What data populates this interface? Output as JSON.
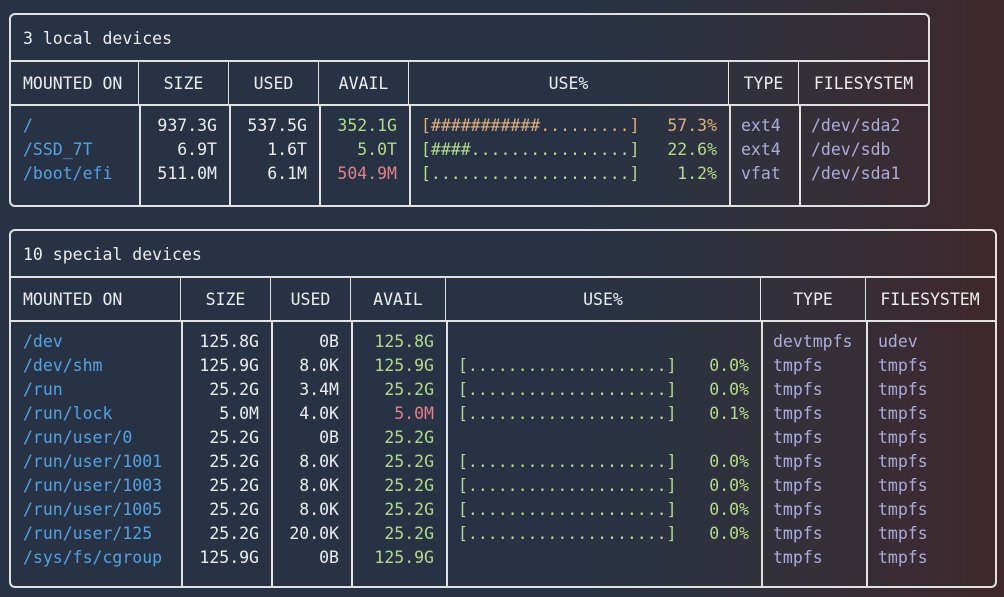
{
  "colors": {
    "background_left": "#273345",
    "background_right": "#3f272c",
    "border": "#e2e2e2",
    "text": "#ececec",
    "path_blue": "#55a1e0",
    "ok_green": "#b3d98c",
    "low_red": "#e0828a",
    "warn_orange": "#e0ac7d",
    "fs_lavender": "#acacdc"
  },
  "tables": [
    {
      "title": "3 local devices",
      "headers": [
        "MOUNTED ON",
        "SIZE",
        "USED",
        "AVAIL",
        "USE%",
        "TYPE",
        "FILESYSTEM"
      ],
      "rows": [
        {
          "mount": "/",
          "size": "937.3G",
          "used": "537.5G",
          "avail": "352.1G",
          "avail_state": "green",
          "bar": "[###########.........]",
          "pct": "57.3%",
          "use_state": "orange",
          "type": "ext4",
          "fs": "/dev/sda2"
        },
        {
          "mount": "/SSD_7T",
          "size": "6.9T",
          "used": "1.6T",
          "avail": "5.0T",
          "avail_state": "green",
          "bar": "[####................]",
          "pct": "22.6%",
          "use_state": "green",
          "type": "ext4",
          "fs": "/dev/sdb"
        },
        {
          "mount": "/boot/efi",
          "size": "511.0M",
          "used": "6.1M",
          "avail": "504.9M",
          "avail_state": "red",
          "bar": "[....................]",
          "pct": "1.2%",
          "use_state": "green",
          "type": "vfat",
          "fs": "/dev/sda1"
        }
      ]
    },
    {
      "title": "10 special devices",
      "headers": [
        "MOUNTED ON",
        "SIZE",
        "USED",
        "AVAIL",
        "USE%",
        "TYPE",
        "FILESYSTEM"
      ],
      "rows": [
        {
          "mount": "/dev",
          "size": "125.8G",
          "used": "0B",
          "avail": "125.8G",
          "avail_state": "green",
          "bar": "",
          "pct": "",
          "use_state": "",
          "type": "devtmpfs",
          "fs": "udev"
        },
        {
          "mount": "/dev/shm",
          "size": "125.9G",
          "used": "8.0K",
          "avail": "125.9G",
          "avail_state": "green",
          "bar": "[....................]",
          "pct": "0.0%",
          "use_state": "green",
          "type": "tmpfs",
          "fs": "tmpfs"
        },
        {
          "mount": "/run",
          "size": "25.2G",
          "used": "3.4M",
          "avail": "25.2G",
          "avail_state": "green",
          "bar": "[....................]",
          "pct": "0.0%",
          "use_state": "green",
          "type": "tmpfs",
          "fs": "tmpfs"
        },
        {
          "mount": "/run/lock",
          "size": "5.0M",
          "used": "4.0K",
          "avail": "5.0M",
          "avail_state": "red",
          "bar": "[....................]",
          "pct": "0.1%",
          "use_state": "green",
          "type": "tmpfs",
          "fs": "tmpfs"
        },
        {
          "mount": "/run/user/0",
          "size": "25.2G",
          "used": "0B",
          "avail": "25.2G",
          "avail_state": "green",
          "bar": "",
          "pct": "",
          "use_state": "",
          "type": "tmpfs",
          "fs": "tmpfs"
        },
        {
          "mount": "/run/user/1001",
          "size": "25.2G",
          "used": "8.0K",
          "avail": "25.2G",
          "avail_state": "green",
          "bar": "[....................]",
          "pct": "0.0%",
          "use_state": "green",
          "type": "tmpfs",
          "fs": "tmpfs"
        },
        {
          "mount": "/run/user/1003",
          "size": "25.2G",
          "used": "8.0K",
          "avail": "25.2G",
          "avail_state": "green",
          "bar": "[....................]",
          "pct": "0.0%",
          "use_state": "green",
          "type": "tmpfs",
          "fs": "tmpfs"
        },
        {
          "mount": "/run/user/1005",
          "size": "25.2G",
          "used": "8.0K",
          "avail": "25.2G",
          "avail_state": "green",
          "bar": "[....................]",
          "pct": "0.0%",
          "use_state": "green",
          "type": "tmpfs",
          "fs": "tmpfs"
        },
        {
          "mount": "/run/user/125",
          "size": "25.2G",
          "used": "20.0K",
          "avail": "25.2G",
          "avail_state": "green",
          "bar": "[....................]",
          "pct": "0.0%",
          "use_state": "green",
          "type": "tmpfs",
          "fs": "tmpfs"
        },
        {
          "mount": "/sys/fs/cgroup",
          "size": "125.9G",
          "used": "0B",
          "avail": "125.9G",
          "avail_state": "green",
          "bar": "",
          "pct": "",
          "use_state": "",
          "type": "tmpfs",
          "fs": "tmpfs"
        }
      ]
    }
  ]
}
